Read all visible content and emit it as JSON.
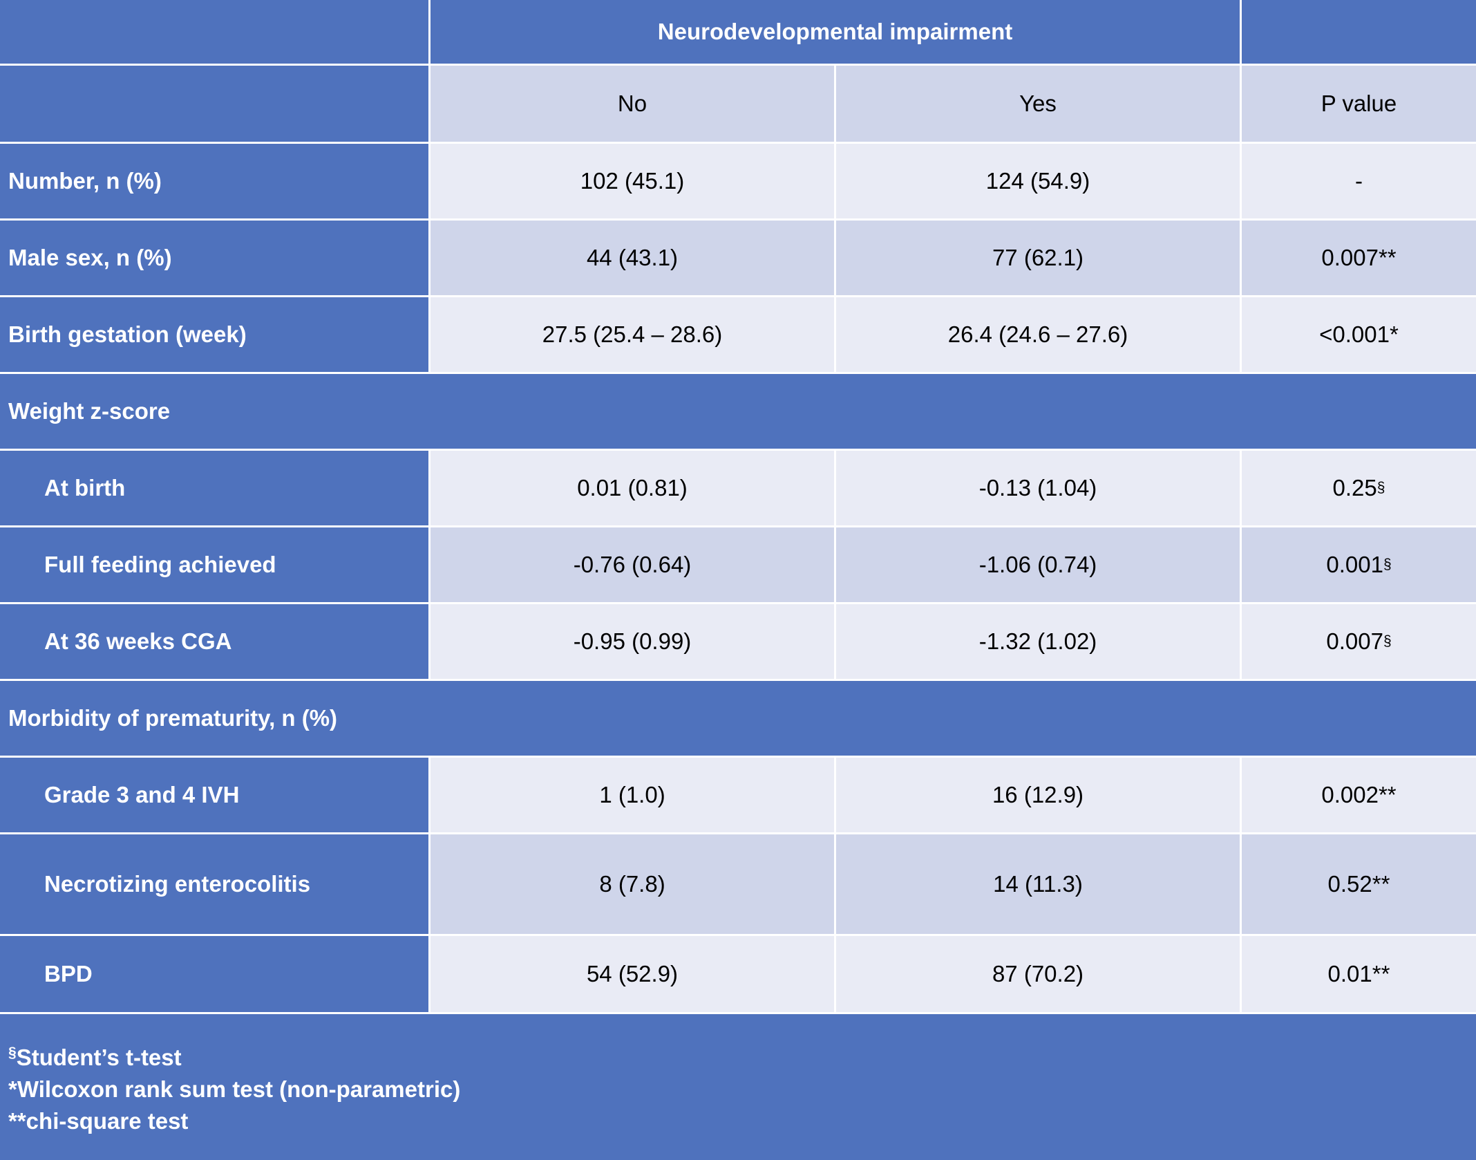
{
  "header": {
    "group_label": "Neurodevelopmental impairment",
    "col_no": "No",
    "col_yes": "Yes",
    "col_p": "P value"
  },
  "rows": [
    {
      "label": "Number, n (%)",
      "no": "102 (45.1)",
      "yes": "124 (54.9)",
      "p": "-",
      "p_sup": ""
    },
    {
      "label": "Male sex, n (%)",
      "no": "44 (43.1)",
      "yes": "77 (62.1)",
      "p": "0.007**",
      "p_sup": ""
    },
    {
      "label": "Birth gestation (week)",
      "no": "27.5 (25.4 – 28.6)",
      "yes": "26.4 (24.6 – 27.6)",
      "p": "<0.001*",
      "p_sup": ""
    },
    {
      "section": "Weight z-score"
    },
    {
      "label": "At birth",
      "no": "0.01 (0.81)",
      "yes": "-0.13 (1.04)",
      "p": "0.25",
      "p_sup": "§"
    },
    {
      "label": "Full feeding achieved",
      "no": "-0.76 (0.64)",
      "yes": "-1.06 (0.74)",
      "p": "0.001",
      "p_sup": "§"
    },
    {
      "label": "At 36 weeks CGA",
      "no": "-0.95 (0.99)",
      "yes": "-1.32 (1.02)",
      "p": "0.007",
      "p_sup": "§"
    },
    {
      "section": "Morbidity of prematurity, n (%)"
    },
    {
      "label": "Grade 3 and 4 IVH",
      "no": "1 (1.0)",
      "yes": "16 (12.9)",
      "p": "0.002**",
      "p_sup": ""
    },
    {
      "label": "Necrotizing enterocolitis",
      "no": "8 (7.8)",
      "yes": "14 (11.3)",
      "p": "0.52**",
      "p_sup": ""
    },
    {
      "label": "BPD",
      "no": "54 (52.9)",
      "yes": "87 (70.2)",
      "p": "0.01**",
      "p_sup": ""
    }
  ],
  "footnotes": [
    {
      "mark": "§",
      "text": "Student’s t-test"
    },
    {
      "mark": "",
      "text": "*Wilcoxon rank sum test (non-parametric)"
    },
    {
      "mark": "",
      "text": "**chi-square test"
    }
  ],
  "colors": {
    "header_blue": "#4F72BD",
    "row_light": "#E9EBF5",
    "row_dark": "#CFD5EA",
    "text_white": "#FFFFFF"
  }
}
